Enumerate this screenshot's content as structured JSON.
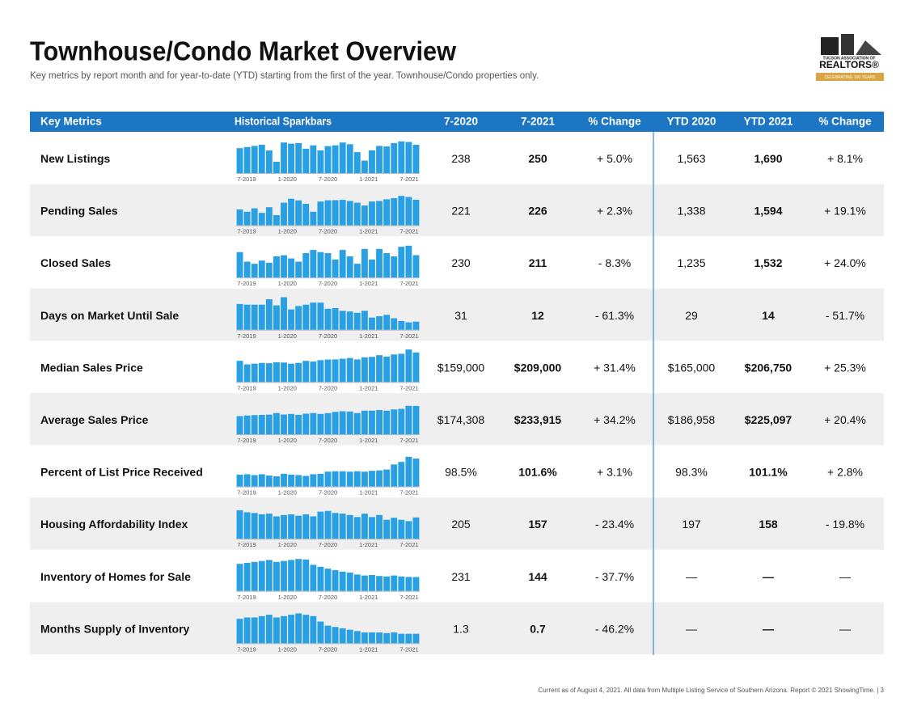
{
  "header": {
    "title": "Townhouse/Condo Market Overview",
    "subtitle": "Key metrics by report month and for year-to-date (YTD) starting from the first of the year. Townhouse/Condo properties only.",
    "logo": {
      "line1": "TUCSON ASSOCIATION OF",
      "line2": "REALTORS®",
      "line3": "CELEBRATING 100 YEARS"
    }
  },
  "spark_labels": [
    "7-2019",
    "1-2020",
    "7-2020",
    "1-2021",
    "7-2021"
  ],
  "table": {
    "columns": [
      "Key Metrics",
      "Historical Sparkbars",
      "7-2020",
      "7-2021",
      "% Change",
      "YTD 2020",
      "YTD 2021",
      "% Change"
    ],
    "rows": [
      {
        "metric": "New Listings",
        "cells": [
          "238",
          "250",
          "+ 5.0%",
          "1,563",
          "1,690",
          "+ 8.1%"
        ],
        "sparkbars": {
          "ylim": [
            0,
            300
          ],
          "values": [
            220,
            230,
            240,
            250,
            200,
            100,
            270,
            260,
            265,
            215,
            245,
            200,
            238,
            245,
            270,
            255,
            185,
            110,
            200,
            240,
            235,
            265,
            280,
            275,
            250
          ]
        }
      },
      {
        "metric": "Pending Sales",
        "cells": [
          "221",
          "226",
          "+ 2.3%",
          "1,338",
          "1,594",
          "+ 19.1%"
        ],
        "sparkbars": {
          "ylim": [
            0,
            300
          ],
          "values": [
            140,
            120,
            150,
            110,
            160,
            90,
            200,
            235,
            220,
            190,
            120,
            210,
            221,
            222,
            225,
            215,
            200,
            175,
            210,
            215,
            230,
            240,
            260,
            250,
            226
          ]
        }
      },
      {
        "metric": "Closed Sales",
        "cells": [
          "230",
          "211",
          "- 8.3%",
          "1,235",
          "1,532",
          "+ 24.0%"
        ],
        "sparkbars": {
          "ylim": [
            0,
            320
          ],
          "values": [
            240,
            150,
            130,
            160,
            140,
            200,
            210,
            180,
            150,
            230,
            260,
            240,
            230,
            170,
            260,
            200,
            130,
            270,
            170,
            270,
            230,
            200,
            290,
            300,
            211
          ]
        }
      },
      {
        "metric": "Days on Market Until Sale",
        "cells": [
          "31",
          "12",
          "- 61.3%",
          "29",
          "14",
          "- 51.7%"
        ],
        "sparkbars": {
          "ylim": [
            0,
            50
          ],
          "values": [
            38,
            37,
            37,
            37,
            45,
            36,
            48,
            30,
            35,
            37,
            40,
            40,
            31,
            32,
            28,
            27,
            25,
            28,
            18,
            20,
            22,
            17,
            13,
            11,
            12
          ]
        }
      },
      {
        "metric": "Median Sales Price",
        "cells": [
          "$159,000",
          "$209,000",
          "+ 31.4%",
          "$165,000",
          "$206,750",
          "+ 25.3%"
        ],
        "sparkbars": {
          "ylim": [
            0,
            240000
          ],
          "values": [
            150000,
            125000,
            130000,
            135000,
            133000,
            140000,
            138000,
            130000,
            135000,
            150000,
            145000,
            155000,
            159000,
            160000,
            165000,
            170000,
            160000,
            175000,
            178000,
            190000,
            180000,
            195000,
            200000,
            230000,
            209000
          ]
        }
      },
      {
        "metric": "Average Sales Price",
        "cells": [
          "$174,308",
          "$233,915",
          "+ 34.2%",
          "$186,958",
          "$225,097",
          "+ 20.4%"
        ],
        "sparkbars": {
          "ylim": [
            0,
            280000
          ],
          "values": [
            150000,
            155000,
            158000,
            160000,
            162000,
            175000,
            163000,
            168000,
            160000,
            170000,
            175000,
            168000,
            174308,
            185000,
            190000,
            188000,
            175000,
            195000,
            195000,
            200000,
            195000,
            205000,
            210000,
            235000,
            233915
          ]
        }
      },
      {
        "metric": "Percent of List Price Received",
        "cells": [
          "98.5%",
          "101.6%",
          "+ 3.1%",
          "98.3%",
          "101.1%",
          "+ 2.8%"
        ],
        "sparkbars": {
          "ylim": [
            95,
            103
          ],
          "values": [
            97.8,
            97.9,
            97.7,
            97.9,
            97.6,
            97.4,
            98.0,
            97.8,
            97.7,
            97.5,
            97.9,
            98.0,
            98.5,
            98.6,
            98.6,
            98.5,
            98.6,
            98.5,
            98.7,
            98.8,
            99.0,
            100.2,
            100.8,
            102.0,
            101.6
          ]
        }
      },
      {
        "metric": "Housing Affordability Index",
        "cells": [
          "205",
          "157",
          "- 23.4%",
          "197",
          "158",
          "- 19.8%"
        ],
        "sparkbars": {
          "ylim": [
            0,
            250
          ],
          "values": [
            210,
            195,
            190,
            180,
            185,
            165,
            175,
            180,
            170,
            180,
            165,
            200,
            205,
            190,
            185,
            175,
            160,
            185,
            160,
            175,
            140,
            155,
            140,
            130,
            157
          ]
        }
      },
      {
        "metric": "Inventory of Homes for Sale",
        "cells": [
          "231",
          "144",
          "- 37.7%",
          "—",
          "—",
          "—"
        ],
        "sparkbars": {
          "ylim": [
            0,
            350
          ],
          "values": [
            280,
            290,
            300,
            310,
            320,
            300,
            310,
            320,
            330,
            325,
            270,
            250,
            231,
            215,
            200,
            190,
            170,
            160,
            165,
            155,
            150,
            160,
            150,
            145,
            144
          ]
        }
      },
      {
        "metric": "Months Supply of Inventory",
        "cells": [
          "1.3",
          "0.7",
          "- 46.2%",
          "—",
          "—",
          "—"
        ],
        "sparkbars": {
          "ylim": [
            0,
            2.5
          ],
          "values": [
            1.8,
            1.9,
            1.9,
            2.0,
            2.1,
            1.9,
            2.0,
            2.1,
            2.2,
            2.1,
            2.0,
            1.6,
            1.3,
            1.2,
            1.1,
            1.0,
            0.9,
            0.8,
            0.8,
            0.8,
            0.75,
            0.8,
            0.7,
            0.7,
            0.7
          ]
        }
      }
    ]
  },
  "footer": "Current as of August 4, 2021. All data from Multiple Listing Service of Southern Arizona. Report © 2021 ShowingTime.  |  3"
}
